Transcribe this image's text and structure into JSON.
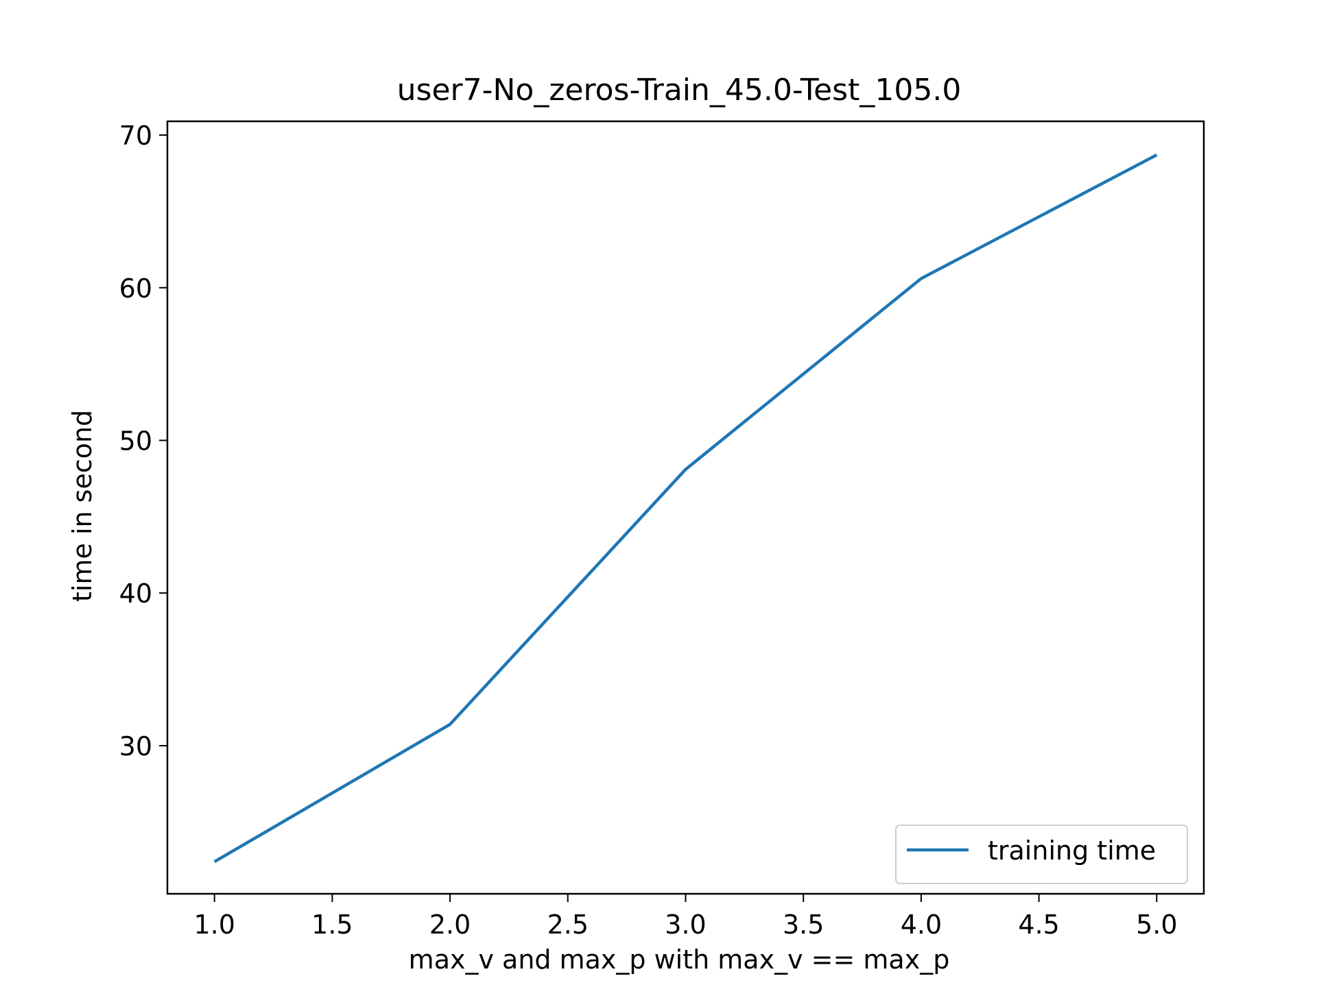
{
  "chart_data": {
    "type": "line",
    "title": "user7-No_zeros-Train_45.0-Test_105.0",
    "xlabel": "max_v and max_p with max_v == max_p",
    "ylabel": "time in second",
    "x": [
      1.0,
      2.0,
      3.0,
      4.0,
      5.0
    ],
    "series": [
      {
        "name": "training time",
        "values": [
          22.4,
          31.4,
          48.1,
          60.6,
          68.7
        ],
        "color": "#1f77b4"
      }
    ],
    "xlim": [
      0.8,
      5.2
    ],
    "ylim": [
      20.3,
      70.9
    ],
    "xticks": [
      1.0,
      1.5,
      2.0,
      2.5,
      3.0,
      3.5,
      4.0,
      4.5,
      5.0
    ],
    "xtick_labels": [
      "1.0",
      "1.5",
      "2.0",
      "2.5",
      "3.0",
      "3.5",
      "4.0",
      "4.5",
      "5.0"
    ],
    "yticks": [
      30,
      40,
      50,
      60,
      70
    ],
    "ytick_labels": [
      "30",
      "40",
      "50",
      "60",
      "70"
    ],
    "grid": false,
    "legend_position": "lower right"
  }
}
